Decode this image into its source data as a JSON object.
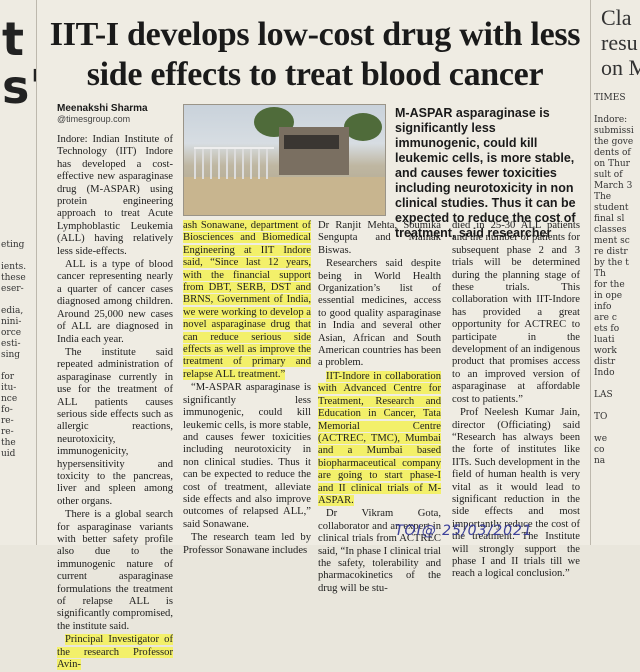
{
  "headline": "IIT-I develops low-cost drug with less side effects to treat blood cancer",
  "byline": {
    "name": "Meenakshi Sharma",
    "email": "@timesgroup.com"
  },
  "pullquote": "M-ASPAR asparaginase is significantly less immunogenic, could kill leukemic cells, is more stable, and causes fewer toxicities including neurotoxicity in non clinical studies. Thus it can be expected to reduce the cost of treatment, said researcher",
  "col1": {
    "p1": "Indore: Indian Institute of Technology (IIT) Indore has developed a cost-effective new asparaginase drug (M-ASPAR) using protein engineering approach to treat Acute Lymphoblastic Leukemia (ALL) having relatively less side-effects.",
    "p2": "ALL is a type of blood cancer representing nearly a quarter of cancer cases diagnosed among children. Around 25,000 new cases of ALL are diagnosed in India each year.",
    "p3": "The institute said repeated administration of asparaginase currently in use for the treatment of ALL patients causes serious side effects such as allergic reactions, neurotoxicity, immunogenicity, hypersensitivity and toxicity to the pancreas, liver and spleen among other organs.",
    "p4": "There is a global search for asparaginase variants with better safety profile also due to the immunogenic nature of current asparaginase formulations the treatment of relapse ALL is significantly compromised, the institute said.",
    "p5": "Principal Investigator of the research Professor Avin-"
  },
  "col2": {
    "p1": "ash Sonawane, department of Biosciences and Biomedical Engineering at IIT Indore said, “Since last 12 years, with the financial support from DBT, SERB, DST and BRNS, Government of India, we were working to develop a novel asparaginase drug that can reduce serious side effects as well as improve the treatment of primary and relapse ALL treatment.”",
    "p2": "“M-ASPAR asparaginase is significantly less immunogenic, could kill leukemic cells, is more stable, and causes fewer toxicities including neurotoxicity in non clinical studies. Thus it can be expected to reduce the cost of treatment, alleviate side effects and also improve outcomes of relapsed ALL,” said Sonawane.",
    "p3": "The research team led by Professor Sonawane includes"
  },
  "col3": {
    "p1": "Dr Ranjit Mehta, Soumika Sengupta and Mainak Biswas.",
    "p2": "Researchers said despite being in World Health Organization’s list of essential medicines, access to good quality asparaginase in India and several other Asian, African and South American countries has been a problem.",
    "p3": "IIT-Indore in collaboration with Advanced Centre for Treatment, Research and Education in Cancer, Tata Memorial Centre (ACTREC, TMC), Mumbai and a Mumbai based biopharmaceutical company are going to start phase-I and II clinical trials of M-ASPAR.",
    "p4": "Dr Vikram Gota, collaborator and an expert in clinical trials from ACTREC said, “In phase I clinical trial the safety, tolerability and pharmacokinetics of the drug will be stu-"
  },
  "col4": {
    "p1": "died in 25-30 ALL patients and the number of patients for subsequent phase 2 and 3 trials will be determined during the planning stage of these trials. This collaboration with IIT-Indore has provided a great opportunity for ACTREC to participate in the development of an indigenous product that promises access to an improved version of asparaginase at affordable cost to patients.”",
    "p2": "Prof Neelesh Kumar Jain, director (Officiating) said “Research has always been the forte of institutes like IITs. Such development in the field of human health is very vital as it would lead to significant reduction in the side effects and most importantly reduce the cost of the treatment. The Institute will strongly support the phase I and II trials till we reach a logical conclusion.”"
  },
  "annotation": "TOI@ 25/03/2021",
  "left_strip": {
    "big": "t\ns'",
    "small": "eting\n\nients.\nthese\neser-\n\nedia,\nnini-\norce\nesti-\nsing\n\nfor\nitu-\nnce\nfo-\nre-\nre-\nthe\nuid"
  },
  "right_strip": {
    "big": "Cla\nresu\non M",
    "small": "TIMES\n\nIndore: \nsubmissi\nthe gove\ndents of\non Thur\nsult of \nMarch 3\nThe\nstudent\nfinal sl\nclasses\nment sc\nre distr\nby the t\nTh\nfor the\nin ope\ninfo\nare c\nets fo\nluati\nwork\ndistr\nIndo\n\nLAS\n\nTO\n\nwe\nco\nna"
  },
  "colors": {
    "highlight": "#f3f06a",
    "paper": "#efece3",
    "ink": "#1a1a1a",
    "pen": "#3b3f9a"
  }
}
